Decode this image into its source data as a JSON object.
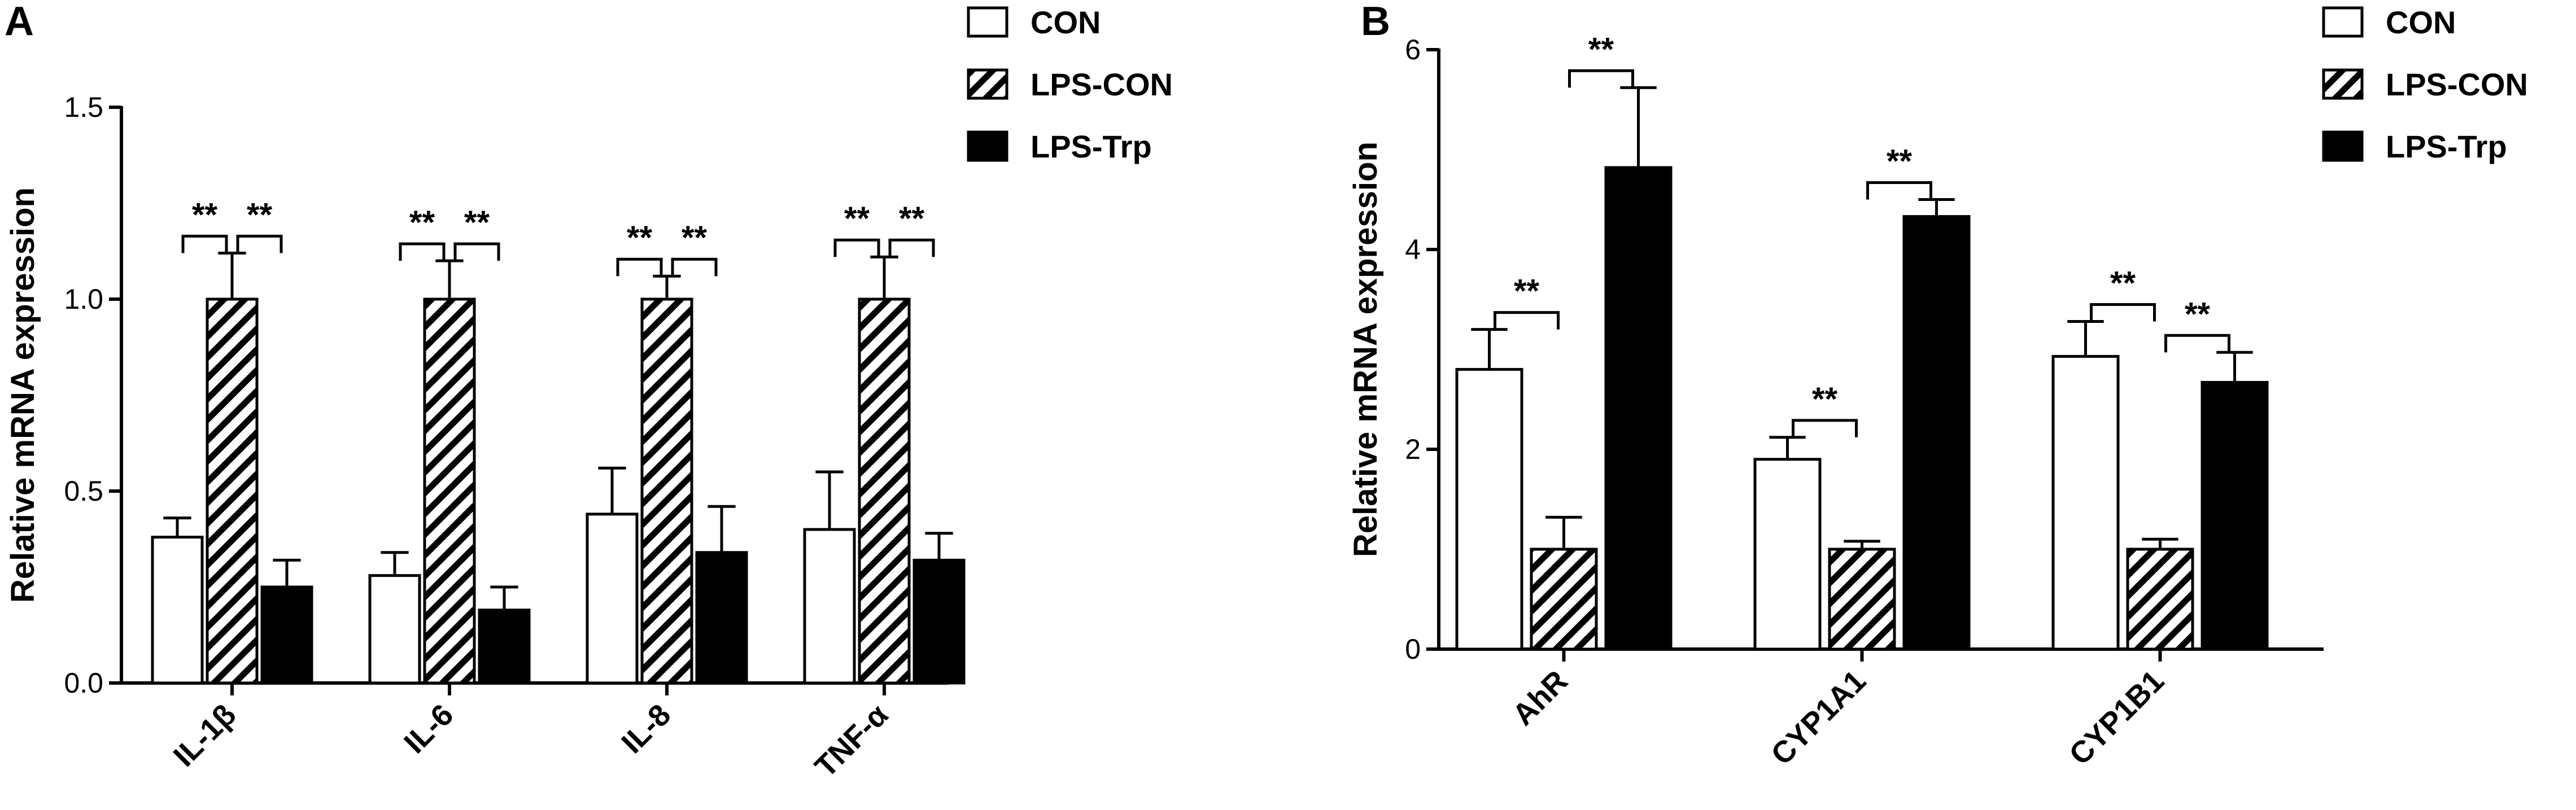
{
  "chart_data": [
    {
      "panel": "A",
      "type": "bar",
      "ylabel": "Relative mRNA expression",
      "ylim": [
        0,
        1.5
      ],
      "yticks": [
        "0.0",
        "0.5",
        "1.0",
        "1.5"
      ],
      "categories": [
        "IL-1β",
        "IL-6",
        "IL-8",
        "TNF-α"
      ],
      "series": [
        {
          "name": "CON",
          "style": "open",
          "values": [
            0.38,
            0.28,
            0.44,
            0.4
          ],
          "errors": [
            0.05,
            0.06,
            0.12,
            0.15
          ]
        },
        {
          "name": "LPS-CON",
          "style": "hatched",
          "values": [
            1.0,
            1.0,
            1.0,
            1.0
          ],
          "errors": [
            0.12,
            0.1,
            0.06,
            0.11
          ]
        },
        {
          "name": "LPS-Trp",
          "style": "solid",
          "values": [
            0.25,
            0.19,
            0.34,
            0.32
          ],
          "errors": [
            0.07,
            0.06,
            0.12,
            0.07
          ]
        }
      ],
      "significance": [
        {
          "category": 0,
          "from": 0,
          "to": 1,
          "label": "**"
        },
        {
          "category": 0,
          "from": 1,
          "to": 2,
          "label": "**"
        },
        {
          "category": 1,
          "from": 0,
          "to": 1,
          "label": "**"
        },
        {
          "category": 1,
          "from": 1,
          "to": 2,
          "label": "**"
        },
        {
          "category": 2,
          "from": 0,
          "to": 1,
          "label": "**"
        },
        {
          "category": 2,
          "from": 1,
          "to": 2,
          "label": "**"
        },
        {
          "category": 3,
          "from": 0,
          "to": 1,
          "label": "**"
        },
        {
          "category": 3,
          "from": 1,
          "to": 2,
          "label": "**"
        }
      ],
      "legend": [
        "CON",
        "LPS-CON",
        "LPS-Trp"
      ]
    },
    {
      "panel": "B",
      "type": "bar",
      "ylabel": "Relative mRNA expression",
      "ylim": [
        0,
        6
      ],
      "yticks": [
        "0",
        "2",
        "4",
        "6"
      ],
      "categories": [
        "AhR",
        "CYP1A1",
        "CYP1B1"
      ],
      "series": [
        {
          "name": "CON",
          "style": "open",
          "values": [
            2.8,
            1.9,
            2.93
          ],
          "errors": [
            0.4,
            0.22,
            0.35
          ]
        },
        {
          "name": "LPS-CON",
          "style": "hatched",
          "values": [
            1.0,
            1.0,
            1.0
          ],
          "errors": [
            0.32,
            0.08,
            0.1
          ]
        },
        {
          "name": "LPS-Trp",
          "style": "solid",
          "values": [
            4.82,
            4.33,
            2.67
          ],
          "errors": [
            0.8,
            0.17,
            0.3
          ]
        }
      ],
      "significance": [
        {
          "category": 0,
          "from": 0,
          "to": 1,
          "label": "**"
        },
        {
          "category": 0,
          "from": 1,
          "to": 2,
          "label": "**"
        },
        {
          "category": 1,
          "from": 0,
          "to": 1,
          "label": "**"
        },
        {
          "category": 1,
          "from": 1,
          "to": 2,
          "label": "**"
        },
        {
          "category": 2,
          "from": 0,
          "to": 1,
          "label": "**"
        },
        {
          "category": 2,
          "from": 1,
          "to": 2,
          "label": "**"
        }
      ],
      "legend": [
        "CON",
        "LPS-CON",
        "LPS-Trp"
      ]
    }
  ]
}
